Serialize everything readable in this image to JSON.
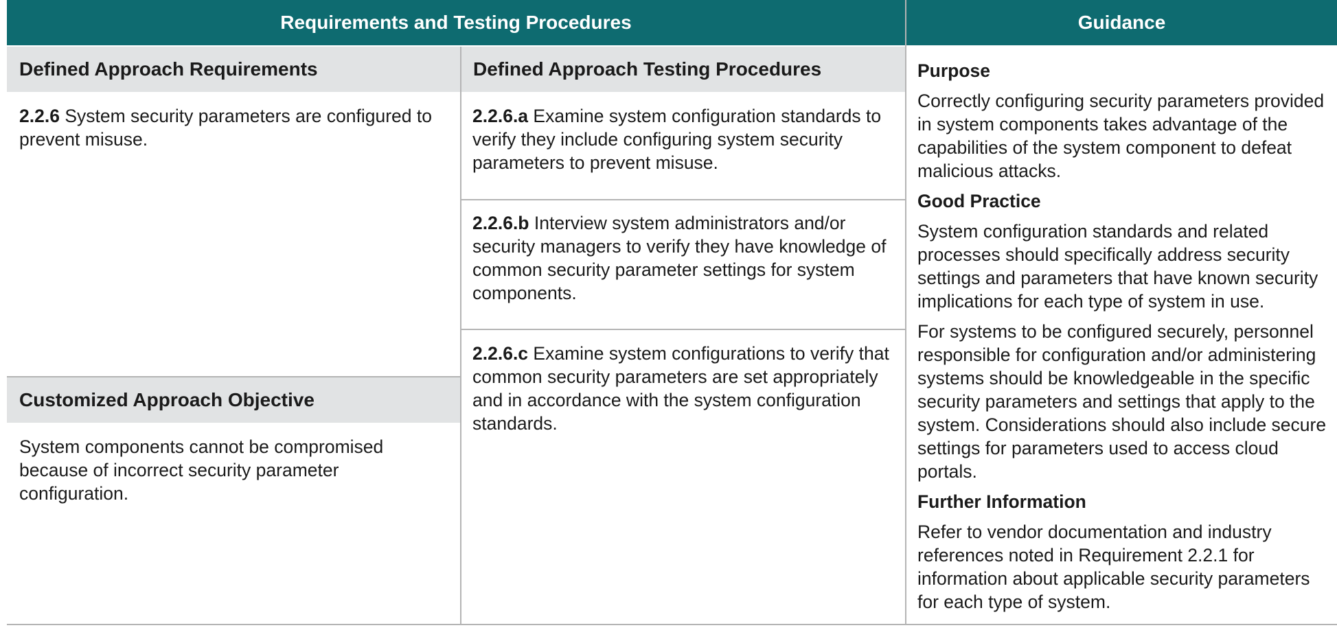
{
  "header": {
    "requirements_title": "Requirements and Testing Procedures",
    "guidance_title": "Guidance"
  },
  "columns": {
    "defined_requirements": "Defined Approach Requirements",
    "defined_testing": "Defined Approach Testing Procedures",
    "customized_objective": "Customized Approach Objective"
  },
  "requirement": {
    "id": "2.2.6",
    "text": " System security parameters are configured to prevent misuse."
  },
  "customized_text": "System components cannot be compromised because of incorrect security parameter configuration.",
  "testing": [
    {
      "id": "2.2.6.a",
      "text": " Examine system configuration standards to verify they include configuring system security parameters to prevent misuse."
    },
    {
      "id": "2.2.6.b",
      "text": " Interview system administrators and/or security managers to verify they have knowledge of common security parameter settings for system components."
    },
    {
      "id": "2.2.6.c",
      "text": " Examine system configurations to verify that common security parameters are set appropriately and in accordance with the system configuration standards."
    }
  ],
  "guidance": {
    "purpose_heading": "Purpose",
    "purpose_text": "Correctly configuring security parameters provided in system components takes advantage of the capabilities of the system component to defeat malicious attacks.",
    "good_practice_heading": "Good Practice",
    "good_practice_text_1": "System configuration standards and related processes should specifically address security settings and parameters that have known security implications for each type of system in use.",
    "good_practice_text_2": "For systems to be configured securely, personnel responsible for configuration and/or administering systems should be knowledgeable in the specific security parameters and settings that apply to the system. Considerations should also include secure settings for parameters used to access cloud portals.",
    "further_info_heading": "Further Information",
    "further_info_text": "Refer to vendor documentation and industry references noted in Requirement 2.2.1 for information about applicable security parameters for each type of system."
  },
  "colors": {
    "header_bg": "#0e6b70",
    "subheader_bg": "#e1e3e4",
    "rule": "#b4b4b4"
  }
}
